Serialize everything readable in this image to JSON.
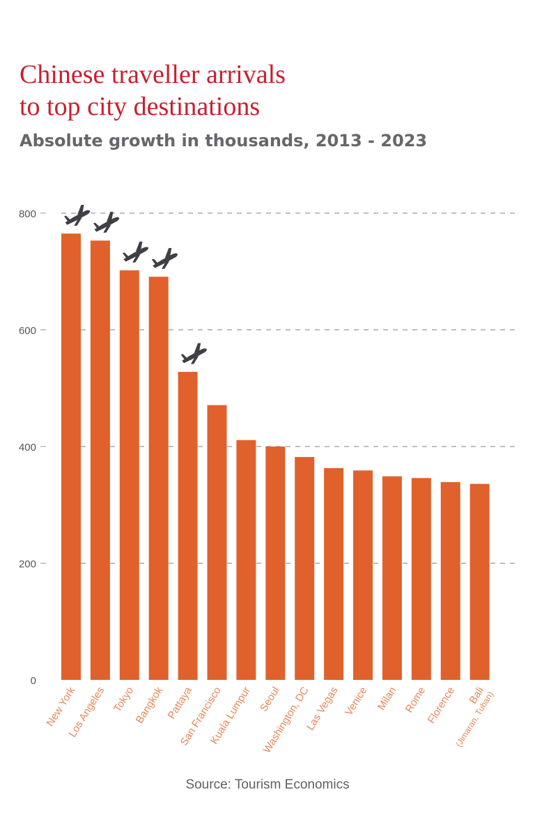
{
  "header": {
    "title_line1": "Chinese traveller arrivals",
    "title_line2": "to top city destinations",
    "subtitle": "Absolute growth in thousands, 2013 - 2023"
  },
  "source": "Source: Tourism Economics",
  "colors": {
    "title": "#c8202f",
    "subtitle": "#66666b",
    "bar": "#e0612b",
    "category_label": "#e8875a",
    "grid": "#9a9a9a",
    "axis_text": "#555555",
    "plane_icon": "#3f4045"
  },
  "chart_data": {
    "type": "bar",
    "title": "Chinese traveller arrivals to top city destinations",
    "subtitle": "Absolute growth in thousands, 2013 - 2023",
    "xlabel": "",
    "ylabel": "",
    "categories": [
      "New York",
      "Los Angeles",
      "Tokyo",
      "Bangkok",
      "Pattaya",
      "San Francisco",
      "Kuala Lumpur",
      "Seoul",
      "Washington, DC",
      "Las Vegas",
      "Venice",
      "Milan",
      "Rome",
      "Florence",
      "Bali"
    ],
    "category_sublabels": {
      "Bali": "(Jimaran, Tuban)"
    },
    "values": [
      765,
      753,
      702,
      691,
      528,
      471,
      411,
      400,
      382,
      363,
      359,
      349,
      346,
      339,
      336
    ],
    "ylim": [
      0,
      800
    ],
    "yticks": [
      0,
      200,
      400,
      600,
      800
    ],
    "ytick_labels": [
      "0",
      "200",
      "400",
      "600",
      "800"
    ],
    "grid": "dashed horizontal",
    "legend": "none",
    "highlighted_with_plane_icon": [
      "New York",
      "Los Angeles",
      "Tokyo",
      "Bangkok",
      "Pattaya"
    ]
  }
}
